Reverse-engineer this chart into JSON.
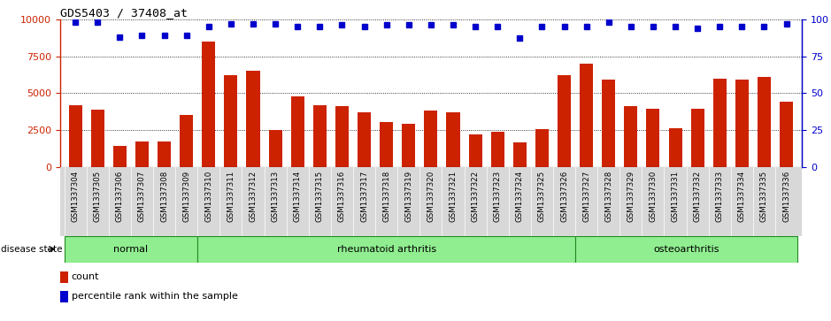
{
  "title": "GDS5403 / 37408_at",
  "samples": [
    "GSM1337304",
    "GSM1337305",
    "GSM1337306",
    "GSM1337307",
    "GSM1337308",
    "GSM1337309",
    "GSM1337310",
    "GSM1337311",
    "GSM1337312",
    "GSM1337313",
    "GSM1337314",
    "GSM1337315",
    "GSM1337316",
    "GSM1337317",
    "GSM1337318",
    "GSM1337319",
    "GSM1337320",
    "GSM1337321",
    "GSM1337322",
    "GSM1337323",
    "GSM1337324",
    "GSM1337325",
    "GSM1337326",
    "GSM1337327",
    "GSM1337328",
    "GSM1337329",
    "GSM1337330",
    "GSM1337331",
    "GSM1337332",
    "GSM1337333",
    "GSM1337334",
    "GSM1337335",
    "GSM1337336"
  ],
  "counts": [
    4200,
    3900,
    1400,
    1700,
    1750,
    3500,
    8500,
    6200,
    6500,
    2500,
    4800,
    4200,
    4100,
    3700,
    3050,
    2950,
    3800,
    3700,
    2200,
    2400,
    1650,
    2550,
    6200,
    7000,
    5900,
    4100,
    3950,
    2600,
    3950,
    6000,
    5900,
    6100,
    4400
  ],
  "percentiles": [
    98,
    98,
    88,
    89,
    89,
    89,
    95,
    97,
    97,
    97,
    95,
    95,
    96,
    95,
    96,
    96,
    96,
    96,
    95,
    95,
    87,
    95,
    95,
    95,
    98,
    95,
    95,
    95,
    94,
    95,
    95,
    95,
    97
  ],
  "groups": [
    {
      "label": "normal",
      "start": 0,
      "end": 6
    },
    {
      "label": "rheumatoid arthritis",
      "start": 6,
      "end": 23
    },
    {
      "label": "osteoarthritis",
      "start": 23,
      "end": 33
    }
  ],
  "bar_color": "#cc2200",
  "dot_color": "#0000cc",
  "ylim_left": [
    0,
    10000
  ],
  "ylim_right": [
    0,
    100
  ],
  "yticks_left": [
    0,
    2500,
    5000,
    7500,
    10000
  ],
  "yticks_right": [
    0,
    25,
    50,
    75,
    100
  ],
  "group_color": "#90ee90",
  "group_border_color": "#228B22",
  "plot_bg": "#ffffff",
  "tick_area_bg": "#d8d8d8"
}
